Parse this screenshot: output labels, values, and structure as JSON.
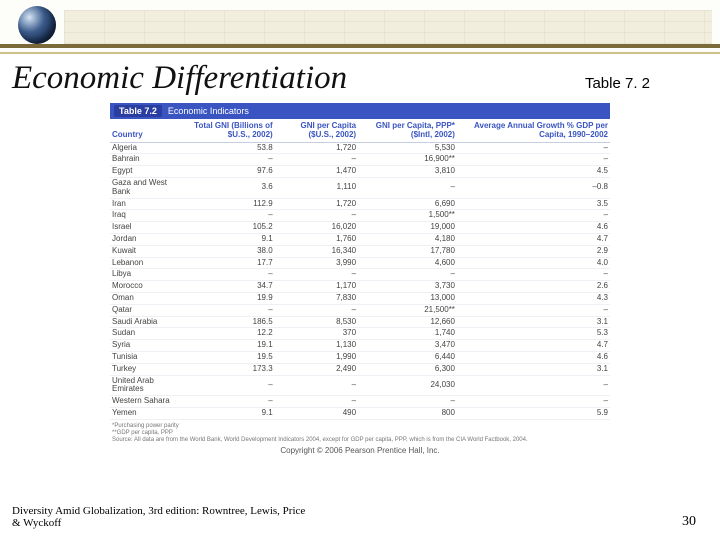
{
  "header": {
    "title": "Economic Differentiation",
    "table_label": "Table 7. 2"
  },
  "figure": {
    "banner_tag": "Table 7.2",
    "banner_title": "Economic Indicators",
    "columns": [
      "Country",
      "Total GNI (Billions of $U.S., 2002)",
      "GNI per Capita ($U.S., 2002)",
      "GNI per Capita, PPP* ($Intl, 2002)",
      "Average Annual Growth % GDP per Capita, 1990–2002"
    ],
    "rows": [
      [
        "Algeria",
        "53.8",
        "1,720",
        "5,530",
        "–"
      ],
      [
        "Bahrain",
        "–",
        "–",
        "16,900**",
        "–"
      ],
      [
        "Egypt",
        "97.6",
        "1,470",
        "3,810",
        "4.5"
      ],
      [
        "Gaza and West Bank",
        "3.6",
        "1,110",
        "–",
        "–0.8"
      ],
      [
        "Iran",
        "112.9",
        "1,720",
        "6,690",
        "3.5"
      ],
      [
        "Iraq",
        "–",
        "–",
        "1,500**",
        "–"
      ],
      [
        "Israel",
        "105.2",
        "16,020",
        "19,000",
        "4.6"
      ],
      [
        "Jordan",
        "9.1",
        "1,760",
        "4,180",
        "4.7"
      ],
      [
        "Kuwait",
        "38.0",
        "16,340",
        "17,780",
        "2.9"
      ],
      [
        "Lebanon",
        "17.7",
        "3,990",
        "4,600",
        "4.0"
      ],
      [
        "Libya",
        "–",
        "–",
        "–",
        "–"
      ],
      [
        "Morocco",
        "34.7",
        "1,170",
        "3,730",
        "2.6"
      ],
      [
        "Oman",
        "19.9",
        "7,830",
        "13,000",
        "4.3"
      ],
      [
        "Qatar",
        "–",
        "–",
        "21,500**",
        "–"
      ],
      [
        "Saudi Arabia",
        "186.5",
        "8,530",
        "12,660",
        "3.1"
      ],
      [
        "Sudan",
        "12.2",
        "370",
        "1,740",
        "5.3"
      ],
      [
        "Syria",
        "19.1",
        "1,130",
        "3,470",
        "4.7"
      ],
      [
        "Tunisia",
        "19.5",
        "1,990",
        "6,440",
        "4.6"
      ],
      [
        "Turkey",
        "173.3",
        "2,490",
        "6,300",
        "3.1"
      ],
      [
        "United Arab Emirates",
        "–",
        "–",
        "24,030",
        "–"
      ],
      [
        "Western Sahara",
        "–",
        "–",
        "–",
        "–"
      ],
      [
        "Yemen",
        "9.1",
        "490",
        "800",
        "5.9"
      ]
    ],
    "footnote1": "*Purchasing power parity",
    "footnote2": "**GDP per capita, PPP",
    "source": "Source: All data are from the World Bank, World Development Indicators 2004, except for GDP per capita, PPP, which is from the CIA World Factbook, 2004.",
    "copyright": "Copyright © 2006 Pearson Prentice Hall, Inc."
  },
  "footer": {
    "citation": "Diversity Amid Globalization, 3rd edition: Rowntree, Lewis, Price & Wyckoff",
    "page_number": "30"
  },
  "colors": {
    "banner_bg": "#3a55c2",
    "band": "#7a6a3a"
  }
}
